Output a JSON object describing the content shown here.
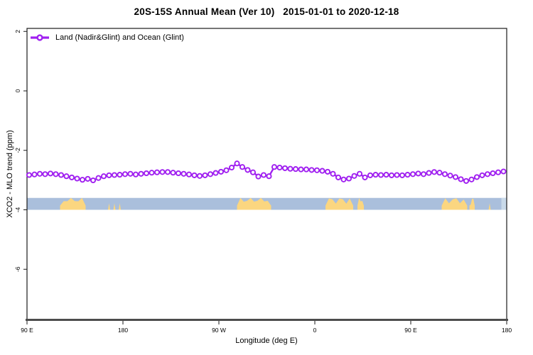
{
  "title": "20S-15S Annual Mean (Ver 10)   2015-01-01 to 2020-12-18",
  "legend": {
    "label": "Land (Nadir&Glint) and Ocean (Glint)"
  },
  "chart_data": {
    "type": "line",
    "title": "20S-15S Annual Mean (Ver 10)   2015-01-01 to 2020-12-18",
    "xlabel": "Longitude (deg E)",
    "ylabel": "XCO2 - MLO trend (ppm)",
    "grid": false,
    "legend_position": "top-left",
    "x_range": [
      90,
      540
    ],
    "y_range": [
      -7.7,
      2.1
    ],
    "x_ticks": [
      {
        "lon": 90,
        "label": "90 E"
      },
      {
        "lon": 180,
        "label": "180"
      },
      {
        "lon": 270,
        "label": "90 W"
      },
      {
        "lon": 360,
        "label": "0"
      },
      {
        "lon": 450,
        "label": "90 E"
      },
      {
        "lon": 540,
        "label": "180"
      }
    ],
    "y_ticks": [
      2,
      0,
      -2,
      -4,
      -6
    ],
    "series": [
      {
        "name": "Land (Nadir&Glint) and Ocean (Glint)",
        "color": "#A020F0",
        "marker": "open-circle",
        "x": [
          92,
          97,
          102,
          107,
          112,
          117,
          122,
          127,
          132,
          137,
          142,
          147,
          152,
          157,
          162,
          167,
          172,
          177,
          182,
          187,
          192,
          197,
          202,
          207,
          212,
          217,
          222,
          227,
          232,
          237,
          242,
          247,
          252,
          257,
          262,
          267,
          272,
          277,
          282,
          287,
          292,
          297,
          302,
          307,
          312,
          317,
          322,
          327,
          332,
          337,
          342,
          347,
          352,
          357,
          362,
          367,
          372,
          377,
          382,
          387,
          392,
          397,
          402,
          407,
          412,
          417,
          422,
          427,
          432,
          437,
          442,
          447,
          452,
          457,
          462,
          467,
          472,
          477,
          482,
          487,
          492,
          497,
          502,
          507,
          512,
          517,
          522,
          527,
          532,
          537
        ],
        "values": [
          -2.83,
          -2.81,
          -2.79,
          -2.8,
          -2.78,
          -2.8,
          -2.83,
          -2.87,
          -2.91,
          -2.95,
          -2.99,
          -2.96,
          -3.01,
          -2.93,
          -2.87,
          -2.84,
          -2.83,
          -2.82,
          -2.8,
          -2.79,
          -2.81,
          -2.79,
          -2.77,
          -2.75,
          -2.74,
          -2.73,
          -2.73,
          -2.75,
          -2.77,
          -2.79,
          -2.81,
          -2.84,
          -2.86,
          -2.84,
          -2.8,
          -2.76,
          -2.72,
          -2.67,
          -2.58,
          -2.44,
          -2.56,
          -2.66,
          -2.74,
          -2.88,
          -2.83,
          -2.87,
          -2.56,
          -2.58,
          -2.6,
          -2.62,
          -2.63,
          -2.64,
          -2.64,
          -2.66,
          -2.67,
          -2.69,
          -2.72,
          -2.79,
          -2.91,
          -2.98,
          -2.95,
          -2.86,
          -2.79,
          -2.91,
          -2.84,
          -2.82,
          -2.83,
          -2.82,
          -2.84,
          -2.83,
          -2.84,
          -2.82,
          -2.8,
          -2.78,
          -2.8,
          -2.76,
          -2.73,
          -2.75,
          -2.8,
          -2.85,
          -2.9,
          -2.97,
          -3.03,
          -2.98,
          -2.9,
          -2.84,
          -2.8,
          -2.77,
          -2.74,
          -2.71
        ]
      }
    ],
    "surface_band": {
      "description": "ocean/land indicator strip along longitude",
      "y_top": -3.6,
      "y_bottom": -4.0,
      "ocean_color": "#AABFDC",
      "land_color": "#FBD680",
      "shallow_color": "#C9DAEA",
      "land_segments": [
        {
          "from_lon": 121,
          "to_lon": 145,
          "type": "land"
        },
        {
          "from_lon": 166,
          "to_lon": 168,
          "type": "island"
        },
        {
          "from_lon": 171,
          "to_lon": 173,
          "type": "island"
        },
        {
          "from_lon": 176,
          "to_lon": 178,
          "type": "island"
        },
        {
          "from_lon": 287,
          "to_lon": 319,
          "type": "land"
        },
        {
          "from_lon": 370,
          "to_lon": 396,
          "type": "land"
        },
        {
          "from_lon": 400,
          "to_lon": 406,
          "type": "land"
        },
        {
          "from_lon": 479,
          "to_lon": 503,
          "type": "land"
        },
        {
          "from_lon": 505,
          "to_lon": 510,
          "type": "land"
        },
        {
          "from_lon": 523,
          "to_lon": 525,
          "type": "island"
        },
        {
          "from_lon": 535,
          "to_lon": 540,
          "type": "shallow"
        }
      ]
    }
  }
}
